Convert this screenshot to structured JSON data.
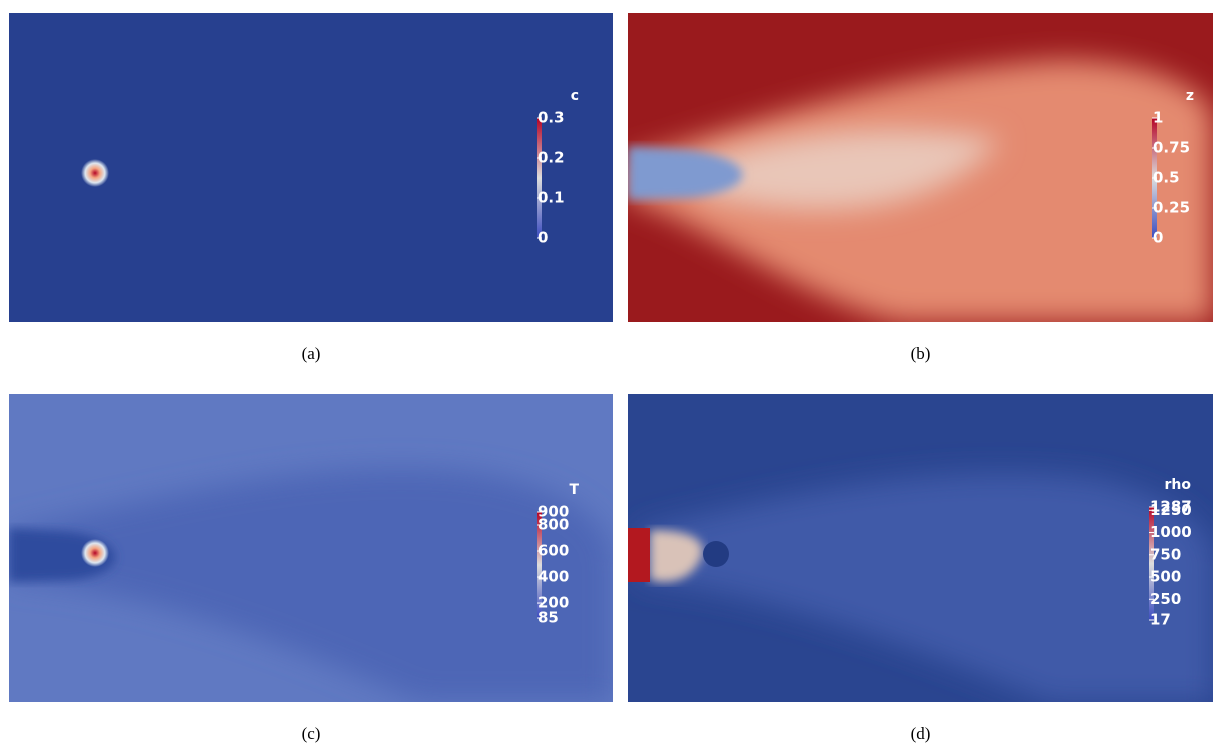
{
  "panels": [
    {
      "caption": "(a)",
      "colorbar": {
        "title": "c",
        "ticks": [
          0.3,
          0.2,
          0.1,
          0
        ]
      }
    },
    {
      "caption": "(b)",
      "colorbar": {
        "title": "z",
        "ticks": [
          1,
          0.75,
          0.5,
          0.25,
          0
        ]
      }
    },
    {
      "caption": "(c)",
      "colorbar": {
        "title": "T",
        "ticks": [
          900,
          800,
          600,
          400,
          200,
          85
        ]
      }
    },
    {
      "caption": "(d)",
      "colorbar": {
        "title": "rho",
        "ticks": [
          1287,
          1250,
          1000,
          750,
          500,
          250,
          17
        ]
      }
    }
  ]
}
